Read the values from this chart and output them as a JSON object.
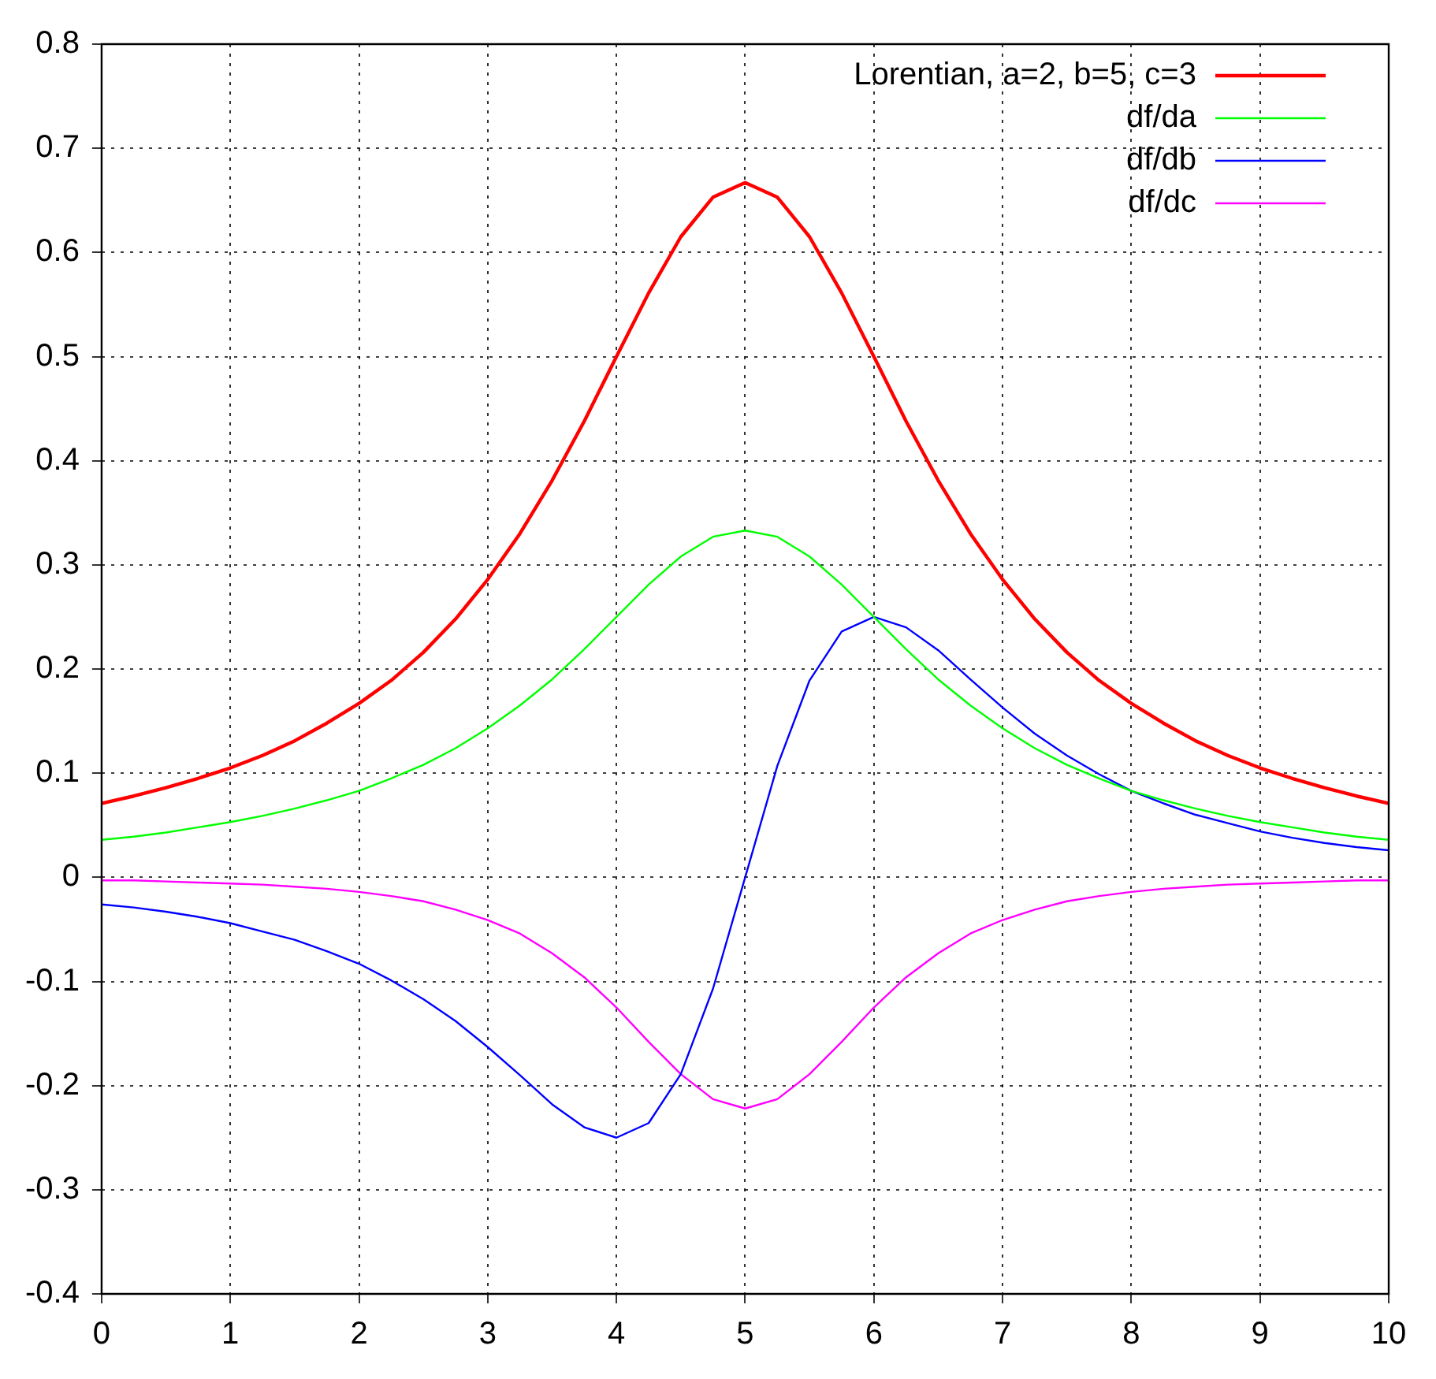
{
  "chart_data": {
    "type": "line",
    "x": [
      0,
      0.25,
      0.5,
      0.75,
      1,
      1.25,
      1.5,
      1.75,
      2,
      2.25,
      2.5,
      2.75,
      3,
      3.25,
      3.5,
      3.75,
      4,
      4.25,
      4.5,
      4.75,
      5,
      5.25,
      5.5,
      5.75,
      6,
      6.25,
      6.5,
      6.75,
      7,
      7.25,
      7.5,
      7.75,
      8,
      8.25,
      8.5,
      8.75,
      9,
      9.25,
      9.5,
      9.75,
      10
    ],
    "series": [
      {
        "name": "Lorentian, a=2, b=5, c=3",
        "color": "#ff0000",
        "values": [
          0.071,
          0.078,
          0.086,
          0.095,
          0.105,
          0.117,
          0.131,
          0.148,
          0.167,
          0.189,
          0.216,
          0.248,
          0.286,
          0.33,
          0.381,
          0.438,
          0.5,
          0.561,
          0.615,
          0.653,
          0.667,
          0.653,
          0.615,
          0.561,
          0.5,
          0.438,
          0.381,
          0.33,
          0.286,
          0.248,
          0.216,
          0.189,
          0.167,
          0.148,
          0.131,
          0.117,
          0.105,
          0.095,
          0.086,
          0.078,
          0.071
        ]
      },
      {
        "name": "df/da",
        "color": "#00ff00",
        "values": [
          0.036,
          0.039,
          0.043,
          0.048,
          0.053,
          0.059,
          0.066,
          0.074,
          0.083,
          0.095,
          0.108,
          0.124,
          0.143,
          0.165,
          0.19,
          0.219,
          0.25,
          0.281,
          0.308,
          0.327,
          0.333,
          0.327,
          0.308,
          0.281,
          0.25,
          0.219,
          0.19,
          0.165,
          0.143,
          0.124,
          0.108,
          0.095,
          0.083,
          0.074,
          0.066,
          0.059,
          0.053,
          0.048,
          0.043,
          0.039,
          0.036
        ]
      },
      {
        "name": "df/db",
        "color": "#0000ff",
        "values": [
          -0.026,
          -0.029,
          -0.033,
          -0.038,
          -0.044,
          -0.052,
          -0.06,
          -0.071,
          -0.083,
          -0.099,
          -0.117,
          -0.138,
          -0.163,
          -0.19,
          -0.218,
          -0.24,
          -0.25,
          -0.236,
          -0.189,
          -0.107,
          0,
          0.107,
          0.189,
          0.236,
          0.25,
          0.24,
          0.218,
          0.19,
          0.163,
          0.138,
          0.117,
          0.099,
          0.083,
          0.071,
          0.06,
          0.052,
          0.044,
          0.038,
          0.033,
          0.029,
          0.026
        ]
      },
      {
        "name": "df/dc",
        "color": "#ff00ff",
        "values": [
          -0.003,
          -0.003,
          -0.004,
          -0.005,
          -0.006,
          -0.007,
          -0.009,
          -0.011,
          -0.014,
          -0.018,
          -0.023,
          -0.031,
          -0.041,
          -0.054,
          -0.073,
          -0.096,
          -0.125,
          -0.158,
          -0.189,
          -0.213,
          -0.222,
          -0.213,
          -0.189,
          -0.158,
          -0.125,
          -0.096,
          -0.073,
          -0.054,
          -0.041,
          -0.031,
          -0.023,
          -0.018,
          -0.014,
          -0.011,
          -0.009,
          -0.007,
          -0.006,
          -0.005,
          -0.004,
          -0.003,
          -0.003
        ]
      }
    ],
    "xlim": [
      0,
      10
    ],
    "xticks": [
      0,
      1,
      2,
      3,
      4,
      5,
      6,
      7,
      8,
      9,
      10
    ],
    "ylim": [
      -0.4,
      0.8
    ],
    "yticks": [
      -0.4,
      -0.3,
      -0.2,
      -0.1,
      0,
      0.1,
      0.2,
      0.3,
      0.4,
      0.5,
      0.6,
      0.7,
      0.8
    ],
    "grid": true,
    "legend": "top right",
    "marker": "none",
    "line_style": "solid"
  }
}
